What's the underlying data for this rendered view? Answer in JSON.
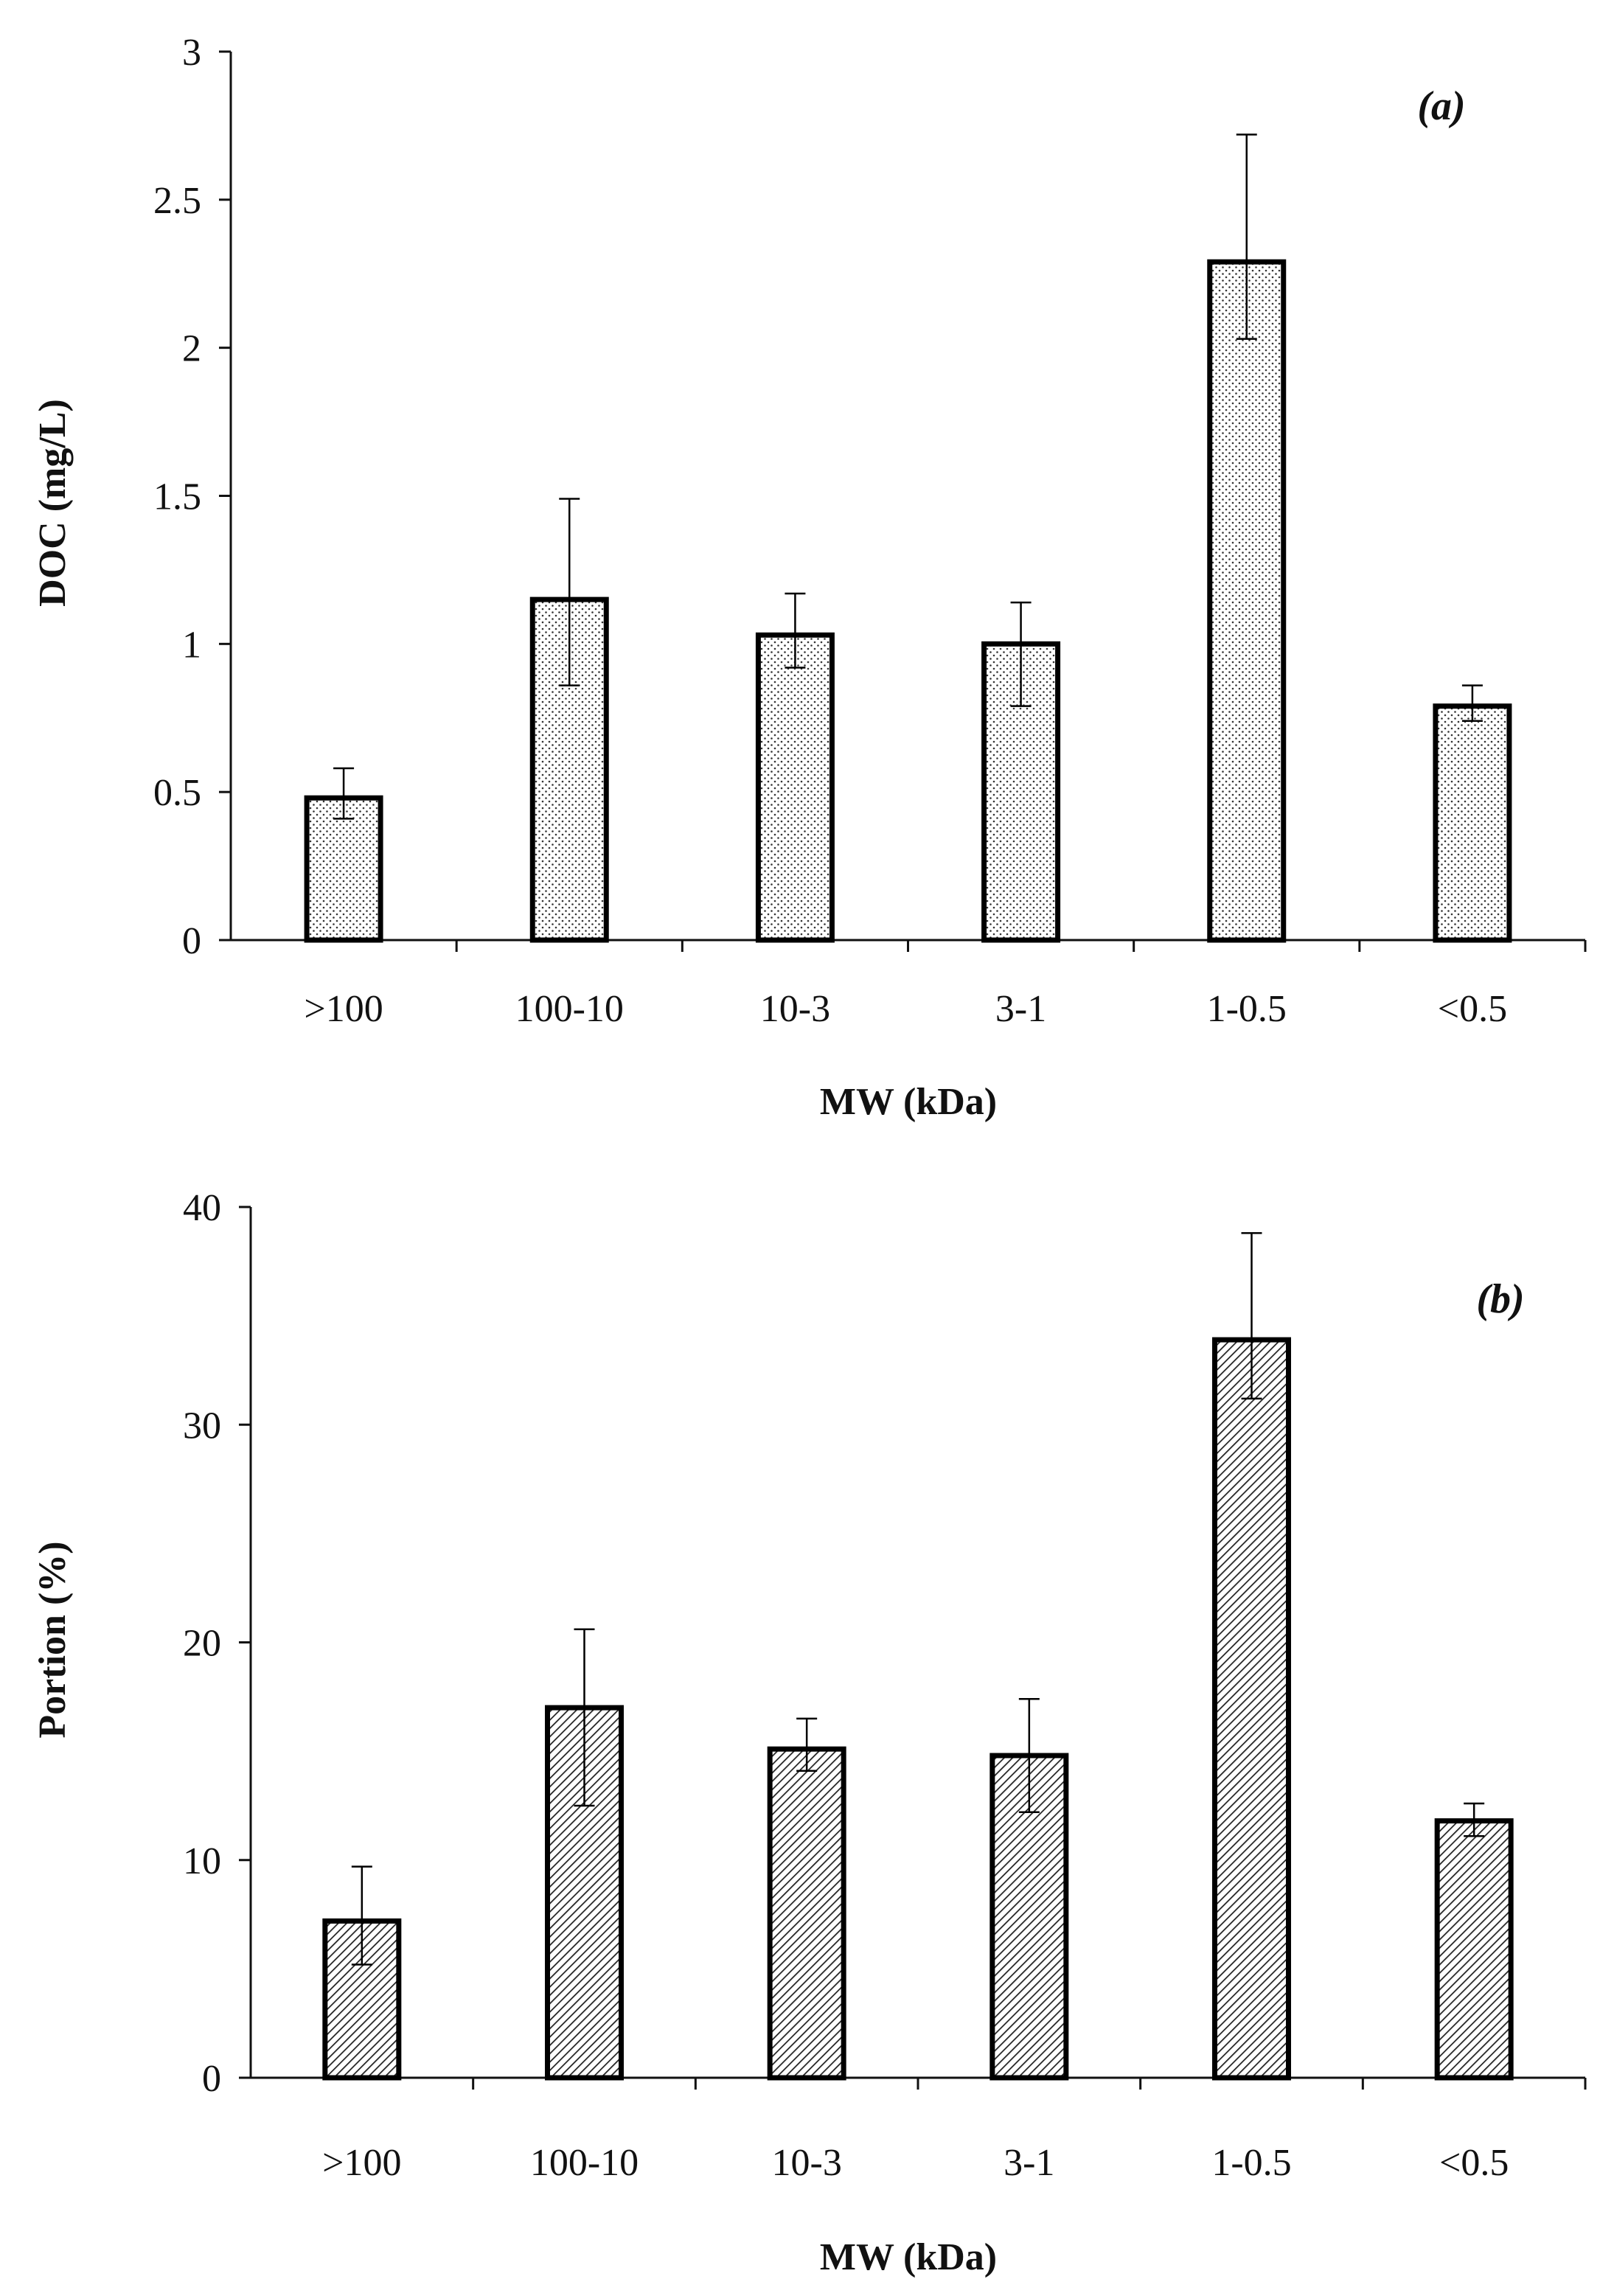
{
  "chart_data": [
    {
      "type": "bar",
      "panel_label": "(a)",
      "categories": [
        ">100",
        "100-10",
        "10-3",
        "3-1",
        "1-0.5",
        "<0.5"
      ],
      "values": [
        0.48,
        1.15,
        1.03,
        1.0,
        2.29,
        0.79
      ],
      "error_upper": [
        0.58,
        1.49,
        1.17,
        1.14,
        2.72,
        0.86
      ],
      "error_lower": [
        0.41,
        0.86,
        0.92,
        0.79,
        2.03,
        0.74
      ],
      "xlabel": "MW (kDa)",
      "ylabel": "DOC (mg/L)",
      "ylim": [
        0,
        3
      ],
      "yticks": [
        0,
        0.5,
        1,
        1.5,
        2,
        2.5,
        3
      ],
      "ytick_labels": [
        "0",
        "0.5",
        "1",
        "1.5",
        "2",
        "2.5",
        "3"
      ],
      "fill_pattern": "dots",
      "grid": false
    },
    {
      "type": "bar",
      "panel_label": "(b)",
      "categories": [
        ">100",
        "100-10",
        "10-3",
        "3-1",
        "1-0.5",
        "<0.5"
      ],
      "values": [
        7.2,
        17.0,
        15.1,
        14.8,
        33.9,
        11.8
      ],
      "error_upper": [
        9.7,
        20.6,
        16.5,
        17.4,
        38.8,
        12.6
      ],
      "error_lower": [
        5.2,
        12.5,
        14.1,
        12.2,
        31.2,
        11.1
      ],
      "xlabel": "MW (kDa)",
      "ylabel": "Portion (%)",
      "ylim": [
        0,
        40
      ],
      "yticks": [
        0,
        10,
        20,
        30,
        40
      ],
      "ytick_labels": [
        "0",
        "10",
        "20",
        "30",
        "40"
      ],
      "fill_pattern": "hatch",
      "grid": false
    }
  ],
  "colors": {
    "axis": "#111111",
    "bar_edge": "#000000",
    "bar_fill": "#ffffff",
    "pattern": "#333333"
  }
}
